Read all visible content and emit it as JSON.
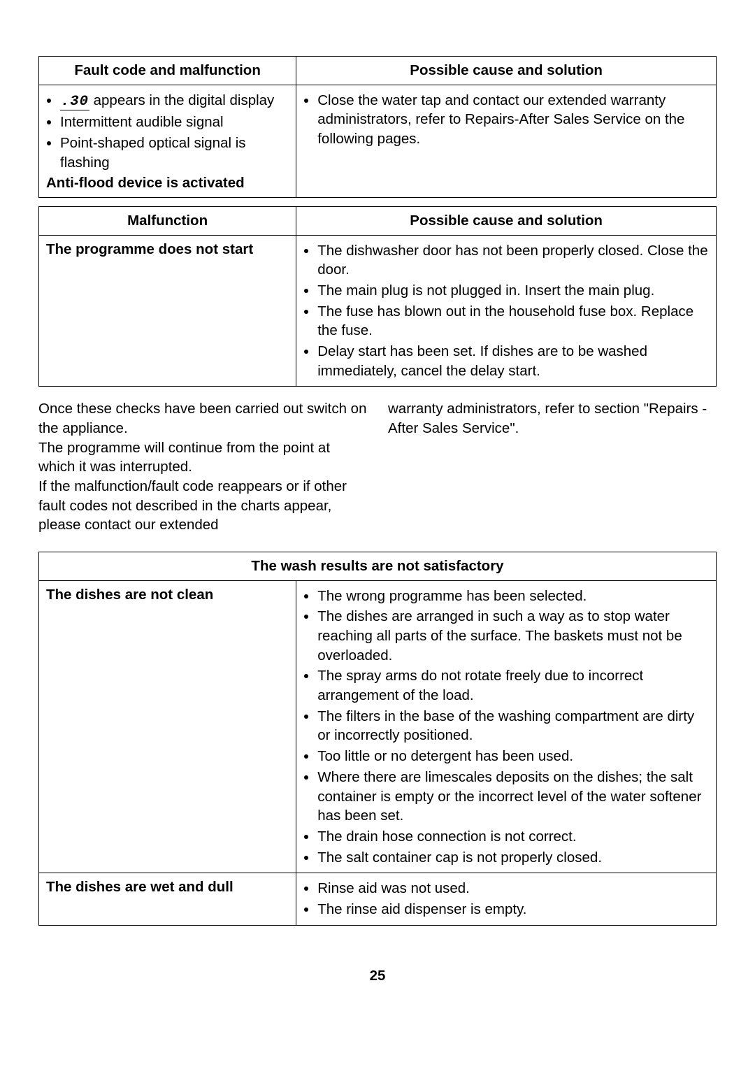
{
  "table1": {
    "headerLeft": "Fault code and malfunction",
    "headerRight": "Possible cause and solution",
    "leftBullets": [
      "appears in the digital display",
      "Intermittent audible signal",
      "Point-shaped optical signal is flashing"
    ],
    "leftBold": "Anti-flood device is activated",
    "rightBullet": "Close the water tap and contact our extended warranty administrators, refer to Repairs-After Sales Service on the following pages."
  },
  "table2": {
    "headerLeft": "Malfunction",
    "headerRight": "Possible cause and solution",
    "leftBold": "The programme does not start",
    "rightBullets": [
      "The dishwasher door has not been properly closed. Close the door.",
      "The main plug is not plugged in. Insert the main plug.",
      "The fuse has blown out in the household fuse box. Replace the fuse.",
      "Delay start has been set. If dishes are to be washed immediately, cancel the delay start."
    ]
  },
  "paragraph": {
    "col1": "Once these checks have been carried out switch on the appliance.\nThe programme will continue from the point at which it was interrupted.\nIf the malfunction/fault code reappears or if other fault codes not described in the charts appear, please contact our extended",
    "col2": "warranty administrators, refer to section \"Repairs - After Sales Service\"."
  },
  "table3": {
    "headerFull": "The wash results are not satisfactory",
    "row1LeftBold": "The dishes are not clean",
    "row1Right": [
      "The wrong programme has been selected.",
      "The dishes are arranged in such a way as to stop water reaching all parts of the surface. The baskets must not be overloaded.",
      "The spray arms do not rotate freely due to incorrect arrangement of the load.",
      "The filters in the base of the washing compartment are dirty or incorrectly positioned.",
      "Too little or no detergent has been used.",
      "Where there are limescales deposits on the dishes; the salt container is empty or the incorrect level of the water softener has been set.",
      "The drain hose connection is not correct.",
      "The salt container cap is not properly closed."
    ],
    "row2LeftBold": "The dishes are wet and dull",
    "row2Right": [
      "Rinse aid was not used.",
      "The rinse aid dispenser is empty."
    ]
  },
  "pageNumber": "25",
  "segCode": ".30"
}
